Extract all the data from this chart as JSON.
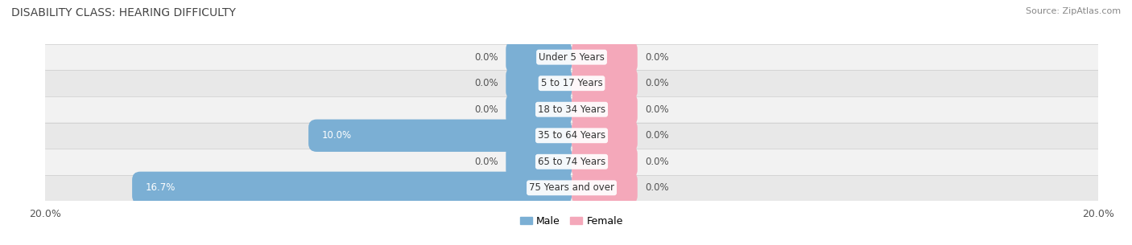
{
  "title": "DISABILITY CLASS: HEARING DIFFICULTY",
  "source": "Source: ZipAtlas.com",
  "categories": [
    "Under 5 Years",
    "5 to 17 Years",
    "18 to 34 Years",
    "35 to 64 Years",
    "65 to 74 Years",
    "75 Years and over"
  ],
  "male_values": [
    0.0,
    0.0,
    0.0,
    10.0,
    0.0,
    16.7
  ],
  "female_values": [
    0.0,
    0.0,
    0.0,
    0.0,
    0.0,
    0.0
  ],
  "male_color": "#7bafd4",
  "female_color": "#f4a8ba",
  "row_bg_odd": "#f2f2f2",
  "row_bg_even": "#e8e8e8",
  "xlim": 20.0,
  "bar_height": 0.62,
  "label_fontsize": 8.5,
  "title_fontsize": 10,
  "tick_fontsize": 9,
  "legend_fontsize": 9,
  "category_fontsize": 8.5,
  "zero_bar_width": 2.5,
  "value_color_inside": "#ffffff",
  "value_color_outside": "#555555"
}
